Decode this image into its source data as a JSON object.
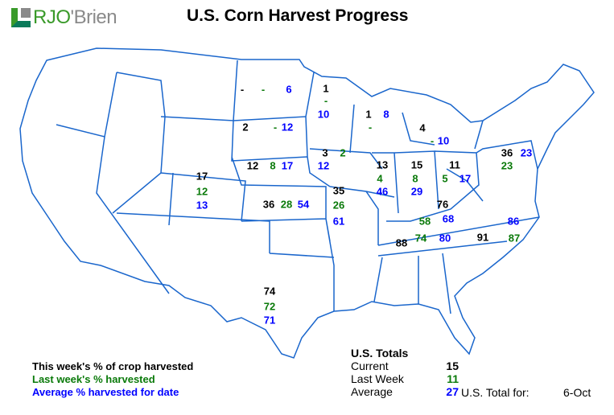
{
  "title": "U.S. Corn Harvest Progress",
  "logo_text": "RJO'Brien",
  "colors": {
    "current": "#000000",
    "last_week": "#0a7a0a",
    "average": "#0000ff",
    "borders": "#1a66cc"
  },
  "states": [
    {
      "current": "-",
      "last_week": "-",
      "average": "6"
    },
    {
      "current": "1",
      "last_week": "-",
      "average": "10"
    },
    {
      "current": "2",
      "last_week": "-",
      "average": "12"
    },
    {
      "current": "1",
      "last_week": "-",
      "average": "8"
    },
    {
      "current": "4",
      "last_week": "-",
      "average": "10"
    },
    {
      "current": "12",
      "last_week": "8",
      "average": "17"
    },
    {
      "current": "3",
      "last_week": "2",
      "average": "12"
    },
    {
      "current": "17",
      "last_week": "12",
      "average": "13"
    },
    {
      "current": "36",
      "last_week": "28",
      "average": "54"
    },
    {
      "current": "35",
      "last_week": "26",
      "average": "61"
    },
    {
      "current": "13",
      "last_week": "4",
      "average": "46"
    },
    {
      "current": "15",
      "last_week": "8",
      "average": "29"
    },
    {
      "current": "11",
      "last_week": "5",
      "average": "17"
    },
    {
      "current": "36",
      "last_week": "23",
      "average": "23"
    },
    {
      "current": "76",
      "last_week": "58",
      "average": "68"
    },
    {
      "current": "88",
      "last_week": "74",
      "average": "80"
    },
    {
      "current": "91",
      "last_week": "87",
      "average": "86"
    },
    {
      "current": "74",
      "last_week": "72",
      "average": "71"
    }
  ],
  "legend": {
    "current": "This week's % of crop harvested",
    "last_week": "Last week's % harvested",
    "average": "Average % harvested for date"
  },
  "totals": {
    "heading": "U.S. Totals",
    "current_label": "Current",
    "current": "15",
    "last_week_label": "Last Week",
    "last_week": "11",
    "average_label": "Average",
    "average": "27",
    "total_for_label": "U.S. Total for:",
    "date": "6-Oct"
  }
}
